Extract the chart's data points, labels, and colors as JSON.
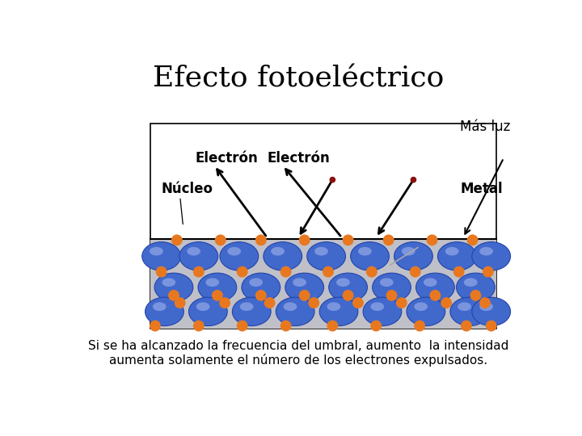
{
  "title": "Efecto fotoeléctrico",
  "subtitle_line1": "Si se ha alcanzado la frecuencia del umbral, aumento  la intensidad",
  "subtitle_line2": "aumenta solamente el número de los electrones expulsados.",
  "label_mas_luz": "Más luz",
  "label_electron1": "Electrón",
  "label_electron2": "Electrón",
  "label_nucleo": "Núcleo",
  "label_metal": "Metal",
  "bg_color": "#ffffff",
  "box_bg": "#ffffff",
  "metal_bg": "#c0c0c8",
  "electron_color": "#4169cc",
  "electron_edge": "#2244aa",
  "electron_highlight": "#99aadd",
  "nucleus_color": "#e87820",
  "photon_color": "#8b1010",
  "title_fontsize": 26,
  "label_fontsize": 11,
  "subtitle_fontsize": 11
}
